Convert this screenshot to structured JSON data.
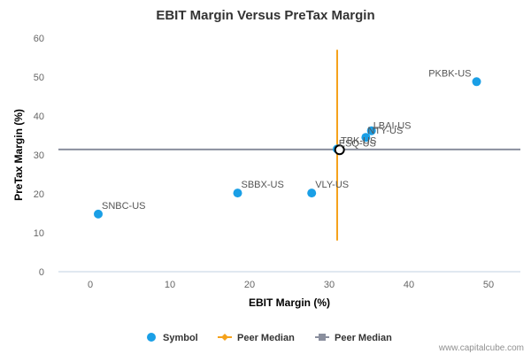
{
  "chart_data": {
    "type": "scatter",
    "title": "EBIT Margin Versus PreTax Margin",
    "xlabel": "EBIT Margin (%)",
    "ylabel": "PreTax Margin (%)",
    "xlim": [
      -4,
      54
    ],
    "ylim": [
      0,
      60
    ],
    "xticks": [
      0,
      10,
      20,
      30,
      40,
      50
    ],
    "yticks": [
      0,
      10,
      20,
      30,
      40,
      50,
      60
    ],
    "grid": false,
    "legend_position": "bottom",
    "series": [
      {
        "name": "Symbol",
        "color": "#1a9fe6",
        "points": [
          {
            "label": "PKBK-US",
            "x": 48.5,
            "y": 48.8
          },
          {
            "label": "LBAI-US",
            "x": 35.3,
            "y": 36.2
          },
          {
            "label": "NTY-US",
            "x": 34.6,
            "y": 34.5
          },
          {
            "label": "TBK-US",
            "x": 31.0,
            "y": 31.5
          },
          {
            "label": "SBBX-US",
            "x": 18.5,
            "y": 20.2
          },
          {
            "label": "VLY-US",
            "x": 27.8,
            "y": 20.2
          },
          {
            "label": "SNBC-US",
            "x": 1.0,
            "y": 14.8
          }
        ]
      }
    ],
    "highlight": {
      "label": "ESQ-US",
      "x": 31.3,
      "y": 31.3
    },
    "peer_median_x": {
      "name": "Peer Median",
      "value": 31.0,
      "y_range": [
        8,
        57
      ],
      "color": "#f5a21b"
    },
    "peer_median_y": {
      "name": "Peer Median",
      "value": 31.4,
      "x_range": [
        -4,
        54
      ],
      "color": "#8a8f9e"
    }
  },
  "credit": "www.capitalcube.com"
}
